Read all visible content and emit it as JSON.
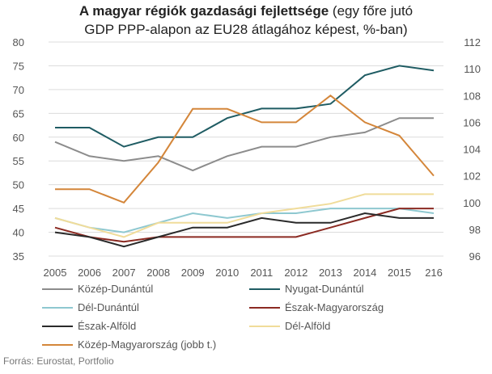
{
  "chart_data": {
    "type": "line",
    "title_bold": "A magyar régiók gazdasági fejlettsége",
    "title_rest": " (egy főre jutó",
    "title_line2": "GDP PPP-alapon az EU28 átlagához képest, %-ban)",
    "x": [
      "2005",
      "2006",
      "2007",
      "2008",
      "2009",
      "2010",
      "2011",
      "2012",
      "2013",
      "2014",
      "2015",
      "216"
    ],
    "ylim_left": [
      35,
      80
    ],
    "yticks_left": [
      "35",
      "40",
      "45",
      "50",
      "55",
      "60",
      "65",
      "70",
      "75",
      "80"
    ],
    "ylim_right": [
      96,
      112
    ],
    "yticks_right": [
      "96",
      "98",
      "100",
      "102",
      "104",
      "106",
      "108",
      "110",
      "112"
    ],
    "grid": true,
    "legend_position": "bottom",
    "series": [
      {
        "name": "Közép-Dunántúl",
        "color": "#8c8c8c",
        "axis": "left",
        "values": [
          59,
          56,
          55,
          56,
          53,
          56,
          58,
          58,
          60,
          61,
          64,
          64
        ]
      },
      {
        "name": "Nyugat-Dunántúl",
        "color": "#1f5c63",
        "axis": "left",
        "values": [
          62,
          62,
          58,
          60,
          60,
          64,
          66,
          66,
          67,
          73,
          75,
          74
        ]
      },
      {
        "name": "Dél-Dunántúl",
        "color": "#8ec8d0",
        "axis": "left",
        "values": [
          43,
          41,
          40,
          42,
          44,
          43,
          44,
          44,
          45,
          45,
          45,
          44
        ]
      },
      {
        "name": "Észak-Magyarország",
        "color": "#8b2a22",
        "axis": "left",
        "values": [
          41,
          39,
          38,
          39,
          39,
          39,
          39,
          39,
          41,
          43,
          45,
          45
        ]
      },
      {
        "name": "Észak-Alföld",
        "color": "#2a2a2a",
        "axis": "left",
        "values": [
          40,
          39,
          37,
          39,
          41,
          41,
          43,
          42,
          42,
          44,
          43,
          43
        ]
      },
      {
        "name": "Dél-Alföld",
        "color": "#f0dc9a",
        "axis": "left",
        "values": [
          43,
          41,
          39,
          42,
          42,
          42,
          44,
          45,
          46,
          48,
          48,
          48
        ]
      },
      {
        "name": "Közép-Magyarország (jobb t.)",
        "color": "#d4863a",
        "axis": "right",
        "values": [
          101,
          101,
          100,
          103,
          107,
          107,
          106,
          106,
          108,
          106,
          105,
          102
        ]
      }
    ]
  },
  "source": "Forrás: Eurostat, Portfolio"
}
